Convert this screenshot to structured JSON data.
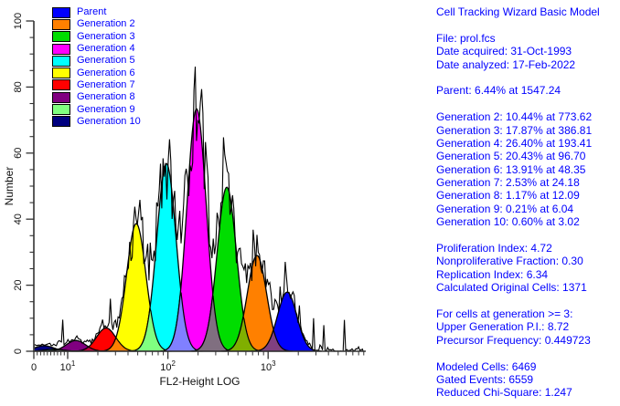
{
  "app_title": "Cell Tracking Wizard Basic Model",
  "text_color": "#0000FF",
  "axis_color": "#333333",
  "chart_data": {
    "type": "area",
    "title": "",
    "xlabel": "FL2-Height LOG",
    "ylabel": "Number",
    "x_scale": "log",
    "ylim": [
      0,
      100
    ],
    "y_major_ticks": [
      0,
      20,
      40,
      60,
      80,
      100
    ],
    "y_minor_step": 5,
    "x_major_ticks": [
      {
        "text": "0",
        "sup": "",
        "v": 0
      },
      {
        "text": "10",
        "sup": "1",
        "v": 10
      },
      {
        "text": "10",
        "sup": "2",
        "v": 100
      },
      {
        "text": "10",
        "sup": "3",
        "v": 1000
      }
    ],
    "series": [
      {
        "name": "Parent",
        "color": "#0000FF",
        "percent": 6.44,
        "mean": 1547.24
      },
      {
        "name": "Generation 2",
        "color": "#FF8000",
        "percent": 10.44,
        "mean": 773.62
      },
      {
        "name": "Generation 3",
        "color": "#00DD00",
        "percent": 17.87,
        "mean": 386.81
      },
      {
        "name": "Generation 4",
        "color": "#FF00FF",
        "percent": 26.4,
        "mean": 193.41
      },
      {
        "name": "Generation 5",
        "color": "#00FFFF",
        "percent": 20.43,
        "mean": 96.7
      },
      {
        "name": "Generation 6",
        "color": "#FFFF00",
        "percent": 13.91,
        "mean": 48.35
      },
      {
        "name": "Generation 7",
        "color": "#FF0000",
        "percent": 2.53,
        "mean": 24.18
      },
      {
        "name": "Generation 8",
        "color": "#800080",
        "percent": 1.17,
        "mean": 12.09
      },
      {
        "name": "Generation 9",
        "color": "#80FF80",
        "percent": 0.21,
        "mean": 6.04
      },
      {
        "name": "Generation 10",
        "color": "#000080",
        "percent": 0.6,
        "mean": 3.02
      }
    ],
    "overlay": "raw-data-histogram-trace",
    "legend_position": "top-left"
  },
  "stats_panel": {
    "lines": [
      "Cell Tracking Wizard Basic Model",
      "",
      "File: prol.fcs",
      "Date acquired: 31-Oct-1993",
      "Date analyzed: 17-Feb-2022",
      "",
      "Parent: 6.44% at 1547.24",
      "",
      "Generation 2: 10.44% at 773.62",
      "Generation 3: 17.87% at 386.81",
      "Generation 4: 26.40% at 193.41",
      "Generation 5: 20.43% at 96.70",
      "Generation 6: 13.91% at 48.35",
      "Generation 7: 2.53% at 24.18",
      "Generation 8: 1.17% at 12.09",
      "Generation 9: 0.21% at 6.04",
      "Generation 10: 0.60% at 3.02",
      "",
      "Proliferation Index: 4.72",
      "Nonproliferative Fraction: 0.30",
      "Replication Index: 6.34",
      "Calculated Original Cells: 1371",
      "",
      "For cells at generation >= 3:",
      "Upper Generation P.I.: 8.72",
      "Precursor Frequency: 0.449723",
      "",
      "Modeled Cells: 6469",
      "Gated Events: 6559",
      "Reduced Chi-Square: 1.247"
    ]
  }
}
